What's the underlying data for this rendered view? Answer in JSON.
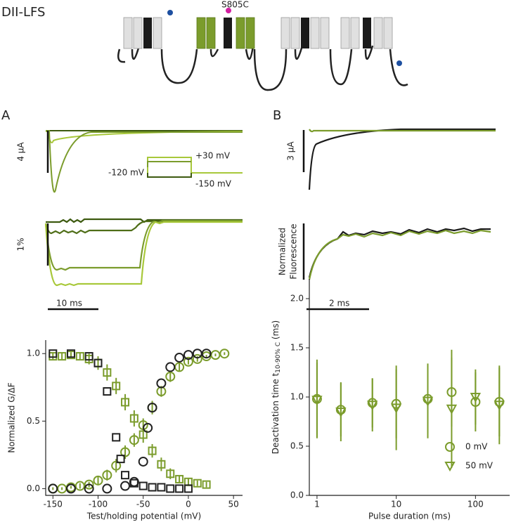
{
  "figure": {
    "title": "DII-LFS",
    "site_label": "S805C",
    "panel_labels": [
      "A",
      "B"
    ],
    "scale_labels": {
      "a_current": "4 μA",
      "a_fluorescence": "1%",
      "a_time": "10 ms",
      "b_current": "3 μA",
      "b_time": "2 ms"
    },
    "b_fluorescence_label": [
      "Normalized",
      "Fluorescence"
    ],
    "protocol_labels": [
      "+30 mV",
      "-120 mV",
      "-150 mV"
    ]
  },
  "chart_data": [
    {
      "type": "scatter",
      "xlabel": "Test/holding potential (mV)",
      "ylabel": "Normalized G/ΔF",
      "xlim": [
        -158,
        60
      ],
      "ylim": [
        -0.05,
        1.1
      ],
      "xticks": [
        -150,
        -100,
        -50,
        0,
        50
      ],
      "yticks": [
        {
          "value": 0,
          "label": "0.0"
        },
        0.5,
        {
          "value": 1,
          "label": "1.0"
        }
      ],
      "grid": false,
      "series": [
        {
          "color": "#7b9c2c",
          "marker": "circle",
          "x": [
            -150,
            -140,
            -130,
            -120,
            -110,
            -100,
            -90,
            -80,
            -70,
            -60,
            -50,
            -40,
            -30,
            -20,
            -10,
            0,
            10,
            20,
            30,
            40
          ],
          "values": [
            0,
            0,
            0.01,
            0.02,
            0.03,
            0.06,
            0.1,
            0.17,
            0.27,
            0.36,
            0.47,
            0.6,
            0.72,
            0.83,
            0.9,
            0.94,
            0.96,
            0.98,
            0.99,
            1.0
          ],
          "errors": [
            0.01,
            0.01,
            0.01,
            0.02,
            0.02,
            0.03,
            0.04,
            0.05,
            0.05,
            0.05,
            0.05,
            0.05,
            0.04,
            0.04,
            0.03,
            0.02,
            0.02,
            0.01,
            0.01,
            0.01
          ]
        },
        {
          "color": "#7b9c2c",
          "marker": "square",
          "x": [
            -150,
            -140,
            -130,
            -120,
            -110,
            -100,
            -90,
            -80,
            -70,
            -60,
            -50,
            -40,
            -30,
            -20,
            -10,
            0,
            10,
            20
          ],
          "values": [
            0.98,
            0.98,
            0.99,
            0.98,
            0.96,
            0.93,
            0.86,
            0.76,
            0.64,
            0.52,
            0.4,
            0.28,
            0.18,
            0.11,
            0.07,
            0.05,
            0.04,
            0.03
          ],
          "errors": [
            0.03,
            0.03,
            0.02,
            0.03,
            0.04,
            0.05,
            0.06,
            0.06,
            0.06,
            0.06,
            0.06,
            0.05,
            0.05,
            0.04,
            0.03,
            0.03,
            0.02,
            0.02
          ]
        },
        {
          "color": "#222222",
          "marker": "circle",
          "x": [
            -150,
            -130,
            -110,
            -90,
            -70,
            -60,
            -50,
            -45,
            -40,
            -30,
            -20,
            -10,
            0,
            10,
            20
          ],
          "values": [
            0,
            0,
            0,
            0,
            0.02,
            0.05,
            0.2,
            0.45,
            0.6,
            0.78,
            0.9,
            0.97,
            0.99,
            1.0,
            1.0
          ]
        },
        {
          "color": "#222222",
          "marker": "square",
          "x": [
            -150,
            -130,
            -110,
            -100,
            -90,
            -80,
            -75,
            -70,
            -60,
            -50,
            -40,
            -30,
            -20,
            -10,
            0
          ],
          "values": [
            1,
            1,
            0.98,
            0.93,
            0.72,
            0.38,
            0.22,
            0.1,
            0.04,
            0.02,
            0.01,
            0.01,
            0,
            0,
            0
          ]
        }
      ]
    },
    {
      "type": "scatter",
      "xscale": "log",
      "xlabel": "Pulse duration (ms)",
      "ylabel": [
        "Deactivation time t",
        "10-90% C",
        " (ms)"
      ],
      "xlim": [
        0.8,
        270
      ],
      "ylim": [
        0,
        2.2
      ],
      "xticks": [
        1,
        10,
        100
      ],
      "yticks": [
        {
          "value": 0,
          "label": "0.0"
        },
        0.5,
        {
          "value": 1,
          "label": "1.0"
        },
        1.5,
        {
          "value": 2,
          "label": "2.0"
        }
      ],
      "grid": false,
      "legend": "lower right",
      "series": [
        {
          "name": "0 mV",
          "color": "#7b9c2c",
          "marker": "circle",
          "x": [
            1,
            2,
            5,
            10,
            25,
            50,
            100,
            200
          ],
          "values": [
            0.98,
            0.87,
            0.94,
            0.93,
            0.98,
            1.05,
            0.95,
            0.95
          ],
          "errors": [
            0.4,
            0.27,
            0.25,
            0.35,
            0.35,
            0.35,
            0.3,
            0.35
          ]
        },
        {
          "name": "50 mV",
          "color": "#7b9c2c",
          "marker": "triangle",
          "x": [
            1,
            2,
            5,
            10,
            25,
            50,
            100,
            200
          ],
          "values": [
            0.97,
            0.85,
            0.92,
            0.89,
            0.96,
            0.88,
            1.0,
            0.92
          ],
          "errors": [
            0.38,
            0.3,
            0.27,
            0.43,
            0.38,
            0.6,
            0.28,
            0.4
          ]
        }
      ]
    }
  ]
}
